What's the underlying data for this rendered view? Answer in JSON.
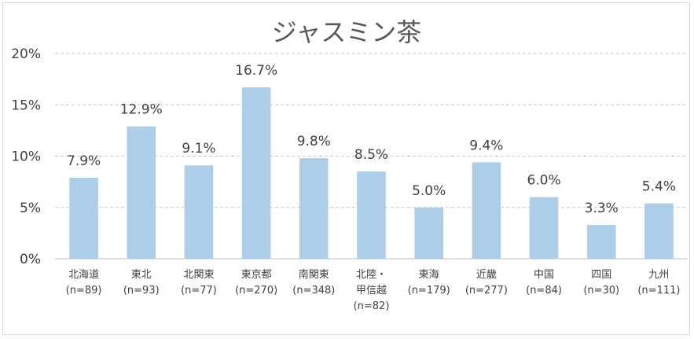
{
  "chart_data": {
    "type": "bar",
    "title": "ジャスミン茶",
    "xlabel": "",
    "ylabel": "",
    "ylim": [
      0,
      20
    ],
    "yticks": [
      "0%",
      "5%",
      "10%",
      "15%",
      "20%"
    ],
    "grid": true,
    "legend": "none",
    "bar_color": "#aecde8",
    "categories": [
      [
        "北海道",
        "(n=89)"
      ],
      [
        "東北",
        "(n=93)"
      ],
      [
        "北関東",
        "(n=77)"
      ],
      [
        "東京都",
        "(n=270)"
      ],
      [
        "南関東",
        "(n=348)"
      ],
      [
        "北陸・",
        "甲信越",
        "(n=82)"
      ],
      [
        "東海",
        "(n=179)"
      ],
      [
        "近畿",
        "(n=277)"
      ],
      [
        "中国",
        "(n=84)"
      ],
      [
        "四国",
        "(n=30)"
      ],
      [
        "九州",
        "(n=111)"
      ]
    ],
    "values": [
      7.9,
      12.9,
      9.1,
      16.7,
      9.8,
      8.5,
      5.0,
      9.4,
      6.0,
      3.3,
      5.4
    ],
    "value_labels": [
      "7.9%",
      "12.9%",
      "9.1%",
      "16.7%",
      "9.8%",
      "8.5%",
      "5.0%",
      "9.4%",
      "6.0%",
      "3.3%",
      "5.4%"
    ]
  }
}
